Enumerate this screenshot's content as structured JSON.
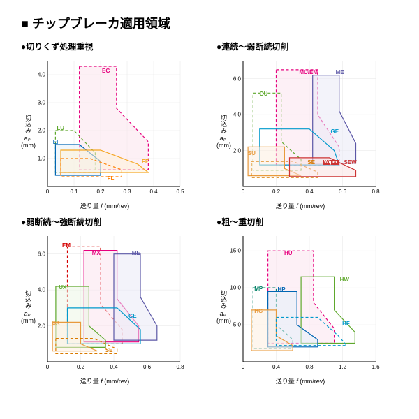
{
  "main_title": "■ チップブレーカ適用領域",
  "axis_labels": {
    "y_text": "切込み",
    "y_sym": "aₚ",
    "y_unit": "(mm)",
    "x_text": "送り量",
    "x_sym": "f",
    "x_unit": "(mm/rev)"
  },
  "panels": [
    {
      "title": "●切りくず処理重視",
      "xlim": [
        0,
        0.5
      ],
      "ylim": [
        0,
        4.5
      ],
      "xticks": [
        0,
        0.1,
        0.2,
        0.3,
        0.4,
        0.5
      ],
      "yticks": [
        1.0,
        2.0,
        3.0,
        4.0
      ],
      "grid_color": "#e6e6e6",
      "regions": [
        {
          "name": "EG",
          "color": "#e6007e",
          "fill": "#fce4ec",
          "dash": true,
          "pts": [
            [
              0.12,
              4.3
            ],
            [
              0.26,
              4.3
            ],
            [
              0.26,
              2.8
            ],
            [
              0.38,
              1.6
            ],
            [
              0.38,
              0.6
            ],
            [
              0.12,
              0.6
            ]
          ],
          "lx": 0.2,
          "ly": 4.1
        },
        {
          "name": "LU",
          "color": "#5fa82d",
          "fill": "none",
          "dash": true,
          "pts": [
            [
              0.03,
              2.0
            ],
            [
              0.1,
              2.0
            ],
            [
              0.18,
              1.2
            ],
            [
              0.18,
              0.5
            ],
            [
              0.03,
              0.5
            ]
          ],
          "lx": 0.03,
          "ly": 2.05
        },
        {
          "name": "EF",
          "color": "#0066b3",
          "fill": "#e3f0fa",
          "dash": false,
          "pts": [
            [
              0.03,
              1.5
            ],
            [
              0.12,
              1.5
            ],
            [
              0.2,
              0.9
            ],
            [
              0.2,
              0.4
            ],
            [
              0.03,
              0.4
            ]
          ],
          "lx": 0.015,
          "ly": 1.55
        },
        {
          "name": "FE",
          "color": "#f5a623",
          "fill": "#fff3d9",
          "dash": false,
          "pts": [
            [
              0.05,
              1.3
            ],
            [
              0.2,
              1.3
            ],
            [
              0.34,
              0.8
            ],
            [
              0.38,
              0.5
            ],
            [
              0.05,
              0.5
            ]
          ],
          "lx": 0.35,
          "ly": 0.85
        },
        {
          "name": "FL",
          "color": "#ff7f00",
          "fill": "none",
          "dash": true,
          "pts": [
            [
              0.05,
              1.0
            ],
            [
              0.16,
              1.0
            ],
            [
              0.28,
              0.6
            ],
            [
              0.28,
              0.35
            ],
            [
              0.05,
              0.35
            ]
          ],
          "lx": 0.22,
          "ly": 0.25
        }
      ]
    },
    {
      "title": "●連続〜弱断続切削",
      "xlim": [
        0,
        0.8
      ],
      "ylim": [
        0,
        7.0
      ],
      "xticks": [
        0,
        0.2,
        0.4,
        0.6,
        0.8
      ],
      "yticks": [
        2.0,
        4.0,
        6.0
      ],
      "grid_color": "#e6e6e6",
      "regions": [
        {
          "name": "MU/EM",
          "color": "#e6007e",
          "fill": "#fbe4ef",
          "dash": true,
          "pts": [
            [
              0.2,
              6.5
            ],
            [
              0.45,
              6.5
            ],
            [
              0.45,
              4.0
            ],
            [
              0.58,
              2.2
            ],
            [
              0.58,
              1.2
            ],
            [
              0.2,
              1.2
            ]
          ],
          "lx": 0.33,
          "ly": 6.3
        },
        {
          "name": "ME",
          "color": "#5b57a6",
          "fill": "#eae9f5",
          "dash": false,
          "pts": [
            [
              0.42,
              6.2
            ],
            [
              0.58,
              6.2
            ],
            [
              0.58,
              4.2
            ],
            [
              0.68,
              2.4
            ],
            [
              0.68,
              1.3
            ],
            [
              0.42,
              1.3
            ]
          ],
          "lx": 0.55,
          "ly": 6.3
        },
        {
          "name": "GU",
          "color": "#5fa82d",
          "fill": "none",
          "dash": true,
          "pts": [
            [
              0.06,
              5.2
            ],
            [
              0.23,
              5.2
            ],
            [
              0.23,
              2.5
            ],
            [
              0.35,
              1.5
            ],
            [
              0.35,
              0.9
            ],
            [
              0.06,
              0.9
            ]
          ],
          "lx": 0.09,
          "ly": 5.1
        },
        {
          "name": "GE",
          "color": "#0099cc",
          "fill": "none",
          "dash": false,
          "pts": [
            [
              0.1,
              3.2
            ],
            [
              0.4,
              3.2
            ],
            [
              0.55,
              2.0
            ],
            [
              0.58,
              1.2
            ],
            [
              0.1,
              1.2
            ]
          ],
          "lx": 0.52,
          "ly": 3.0
        },
        {
          "name": "SU",
          "color": "#e89a3c",
          "fill": "#fdeee0",
          "dash": false,
          "pts": [
            [
              0.03,
              2.2
            ],
            [
              0.25,
              2.2
            ],
            [
              0.25,
              1.0
            ],
            [
              0.35,
              0.6
            ],
            [
              0.03,
              0.6
            ]
          ],
          "lx": 0.02,
          "ly": 1.8
        },
        {
          "name": "SE",
          "color": "#d97a00",
          "fill": "none",
          "dash": true,
          "pts": [
            [
              0.05,
              1.4
            ],
            [
              0.3,
              1.4
            ],
            [
              0.45,
              0.8
            ],
            [
              0.45,
              0.5
            ],
            [
              0.05,
              0.5
            ]
          ],
          "lx": 0.38,
          "ly": 1.3
        },
        {
          "name": "SEW",
          "color": "#cc3333",
          "fill": "#f9e1e1",
          "dash": false,
          "pts": [
            [
              0.28,
              1.6
            ],
            [
              0.52,
              1.6
            ],
            [
              0.68,
              0.9
            ],
            [
              0.68,
              0.55
            ],
            [
              0.28,
              0.55
            ]
          ],
          "lx": 0.6,
          "ly": 1.3,
          "extra": "Wiper",
          "extra_lx": 0.48,
          "extra_ly": 1.3
        }
      ]
    },
    {
      "title": "●弱断続〜強断続切削",
      "xlim": [
        0,
        0.8
      ],
      "ylim": [
        0,
        7.0
      ],
      "xticks": [
        0,
        0.2,
        0.4,
        0.6,
        0.8
      ],
      "yticks": [
        2.0,
        4.0,
        6.0
      ],
      "grid_color": "#e6e6e6",
      "regions": [
        {
          "name": "EM",
          "color": "#d40000",
          "fill": "none",
          "dash": true,
          "pts": [
            [
              0.12,
              6.4
            ],
            [
              0.32,
              6.4
            ],
            [
              0.32,
              3.2
            ],
            [
              0.45,
              1.8
            ],
            [
              0.45,
              1.0
            ],
            [
              0.12,
              1.0
            ]
          ],
          "lx": 0.08,
          "ly": 6.4
        },
        {
          "name": "MX",
          "color": "#e6007e",
          "fill": "#fbe4ef",
          "dash": false,
          "pts": [
            [
              0.22,
              6.2
            ],
            [
              0.42,
              6.2
            ],
            [
              0.42,
              3.5
            ],
            [
              0.55,
              2.0
            ],
            [
              0.55,
              1.1
            ],
            [
              0.22,
              1.1
            ]
          ],
          "lx": 0.26,
          "ly": 6.0
        },
        {
          "name": "ME",
          "color": "#5b57a6",
          "fill": "#eae9f5",
          "dash": false,
          "pts": [
            [
              0.4,
              6.0
            ],
            [
              0.56,
              6.0
            ],
            [
              0.56,
              3.6
            ],
            [
              0.66,
              2.0
            ],
            [
              0.66,
              1.2
            ],
            [
              0.4,
              1.2
            ]
          ],
          "lx": 0.5,
          "ly": 6.0
        },
        {
          "name": "UX",
          "color": "#5fa82d",
          "fill": "#edf6e5",
          "dash": false,
          "pts": [
            [
              0.05,
              4.2
            ],
            [
              0.25,
              4.2
            ],
            [
              0.25,
              2.0
            ],
            [
              0.35,
              1.2
            ],
            [
              0.35,
              0.8
            ],
            [
              0.05,
              0.8
            ]
          ],
          "lx": 0.06,
          "ly": 4.1
        },
        {
          "name": "GE",
          "color": "#0099cc",
          "fill": "none",
          "dash": false,
          "pts": [
            [
              0.12,
              3.0
            ],
            [
              0.42,
              3.0
            ],
            [
              0.56,
              1.8
            ],
            [
              0.56,
              1.0
            ],
            [
              0.12,
              1.0
            ]
          ],
          "lx": 0.48,
          "ly": 2.5
        },
        {
          "name": "SX",
          "color": "#e89a3c",
          "fill": "#fdeee0",
          "dash": false,
          "pts": [
            [
              0.03,
              2.2
            ],
            [
              0.2,
              2.2
            ],
            [
              0.2,
              1.0
            ],
            [
              0.3,
              0.6
            ],
            [
              0.03,
              0.6
            ]
          ],
          "lx": 0.02,
          "ly": 2.1
        },
        {
          "name": "SE",
          "color": "#d97a00",
          "fill": "none",
          "dash": true,
          "pts": [
            [
              0.05,
              1.3
            ],
            [
              0.28,
              1.3
            ],
            [
              0.42,
              0.7
            ],
            [
              0.42,
              0.45
            ],
            [
              0.05,
              0.45
            ]
          ],
          "lx": 0.34,
          "ly": 0.6
        }
      ]
    },
    {
      "title": "●粗〜重切削",
      "xlim": [
        0,
        1.6
      ],
      "ylim": [
        0,
        17.0
      ],
      "xticks": [
        0,
        0.4,
        0.8,
        1.2,
        1.6
      ],
      "yticks": [
        5.0,
        10.0,
        15.0
      ],
      "grid_color": "#e6e6e6",
      "regions": [
        {
          "name": "HU",
          "color": "#e6007e",
          "fill": "#fbe4ef",
          "dash": true,
          "pts": [
            [
              0.3,
              15.0
            ],
            [
              0.85,
              15.0
            ],
            [
              0.85,
              8.0
            ],
            [
              1.1,
              4.5
            ],
            [
              1.1,
              2.5
            ],
            [
              0.3,
              2.5
            ]
          ],
          "lx": 0.48,
          "ly": 14.5
        },
        {
          "name": "HW",
          "color": "#5fa82d",
          "fill": "none",
          "dash": false,
          "pts": [
            [
              0.7,
              11.5
            ],
            [
              1.1,
              11.5
            ],
            [
              1.1,
              7.0
            ],
            [
              1.35,
              4.0
            ],
            [
              1.35,
              2.5
            ],
            [
              0.7,
              2.5
            ]
          ],
          "lx": 1.15,
          "ly": 11.0
        },
        {
          "name": "MP",
          "color": "#008066",
          "fill": "none",
          "dash": true,
          "pts": [
            [
              0.12,
              10.0
            ],
            [
              0.4,
              10.0
            ],
            [
              0.4,
              5.0
            ],
            [
              0.6,
              3.0
            ],
            [
              0.6,
              1.8
            ],
            [
              0.12,
              1.8
            ]
          ],
          "lx": 0.12,
          "ly": 9.7
        },
        {
          "name": "HP",
          "color": "#0066b3",
          "fill": "#e3f0fa",
          "dash": false,
          "pts": [
            [
              0.3,
              9.5
            ],
            [
              0.65,
              9.5
            ],
            [
              0.65,
              5.0
            ],
            [
              0.9,
              3.0
            ],
            [
              0.9,
              2.0
            ],
            [
              0.3,
              2.0
            ]
          ],
          "lx": 0.4,
          "ly": 9.6
        },
        {
          "name": "HG",
          "color": "#e89a3c",
          "fill": "#fdeee0",
          "dash": false,
          "pts": [
            [
              0.1,
              7.0
            ],
            [
              0.4,
              7.0
            ],
            [
              0.4,
              3.5
            ],
            [
              0.6,
              2.2
            ],
            [
              0.6,
              1.5
            ],
            [
              0.1,
              1.5
            ]
          ],
          "lx": 0.12,
          "ly": 6.7
        },
        {
          "name": "HF",
          "color": "#0099cc",
          "fill": "none",
          "dash": true,
          "pts": [
            [
              0.4,
              6.0
            ],
            [
              0.9,
              6.0
            ],
            [
              1.15,
              3.5
            ],
            [
              1.25,
              2.2
            ],
            [
              0.4,
              2.2
            ]
          ],
          "lx": 1.18,
          "ly": 5.0
        }
      ]
    }
  ]
}
